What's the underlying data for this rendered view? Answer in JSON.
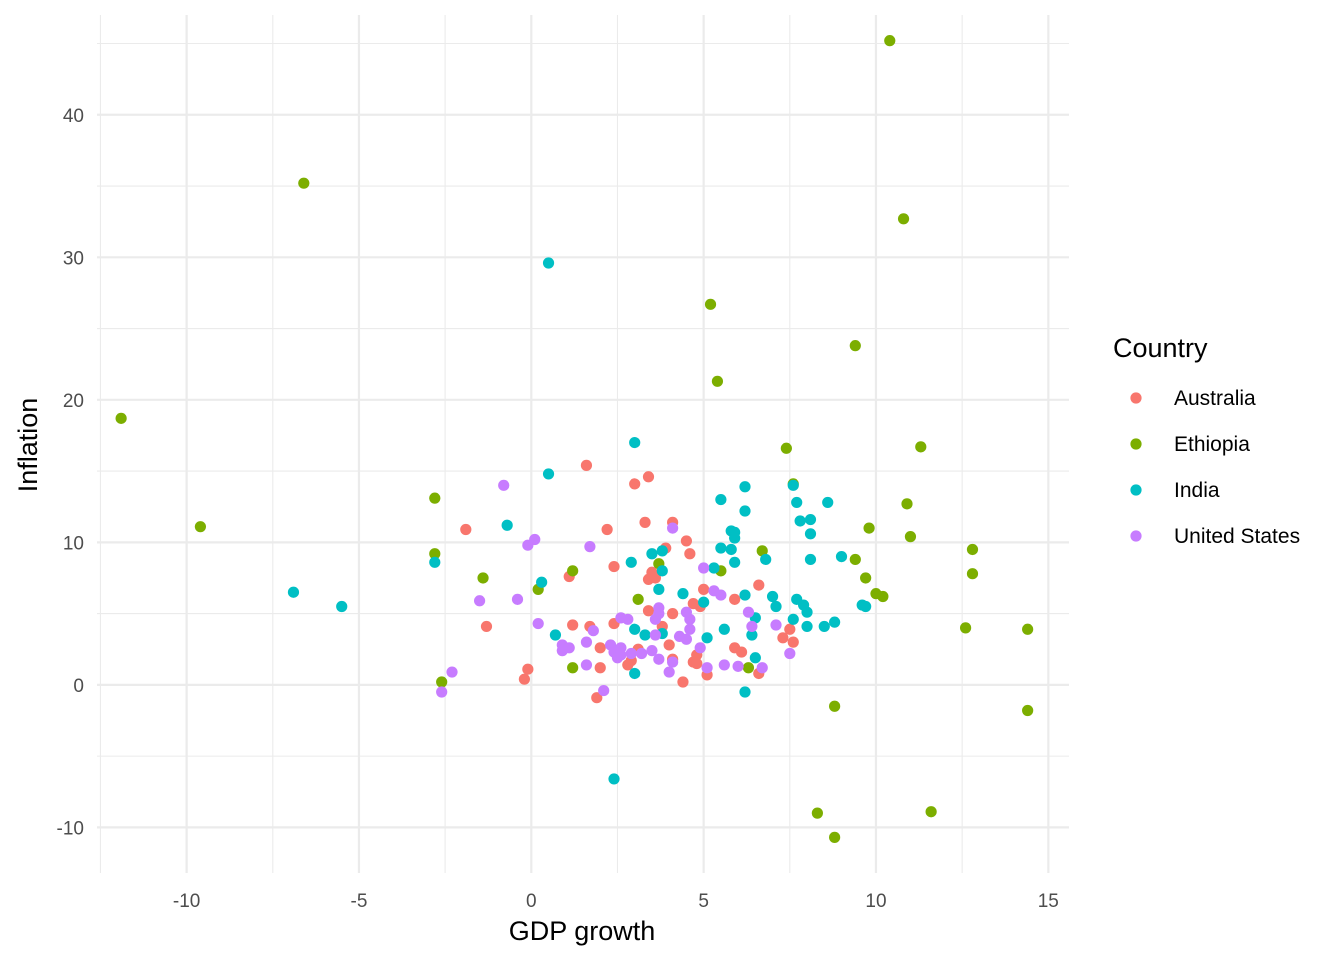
{
  "chart_data": {
    "type": "scatter",
    "xlabel": "GDP growth",
    "ylabel": "Inflation",
    "xlim": [
      -12.6,
      15.6
    ],
    "ylim": [
      -13.2,
      47.0
    ],
    "x_ticks": [
      -10,
      -5,
      0,
      5,
      10,
      15
    ],
    "y_ticks": [
      -10,
      0,
      10,
      20,
      30,
      40
    ],
    "x_tick_labels": [
      "-10",
      "-5",
      "0",
      "5",
      "10",
      "15"
    ],
    "y_tick_labels": [
      "-10",
      "0",
      "10",
      "20",
      "30",
      "40"
    ],
    "grid": true,
    "legend": {
      "title": "Country",
      "position": "right"
    },
    "series": [
      {
        "name": "Australia",
        "color": "#F8766D",
        "points": [
          [
            1.6,
            15.4
          ],
          [
            3.4,
            14.6
          ],
          [
            3.0,
            14.1
          ],
          [
            3.3,
            11.4
          ],
          [
            4.1,
            11.4
          ],
          [
            2.2,
            10.9
          ],
          [
            -1.9,
            10.9
          ],
          [
            4.5,
            10.1
          ],
          [
            3.9,
            9.6
          ],
          [
            4.6,
            9.2
          ],
          [
            3.5,
            7.9
          ],
          [
            3.4,
            7.4
          ],
          [
            3.6,
            7.5
          ],
          [
            2.4,
            8.3
          ],
          [
            1.1,
            7.6
          ],
          [
            6.6,
            7.0
          ],
          [
            5.0,
            6.7
          ],
          [
            5.9,
            6.0
          ],
          [
            3.4,
            5.2
          ],
          [
            4.1,
            5.0
          ],
          [
            4.9,
            5.5
          ],
          [
            4.7,
            5.7
          ],
          [
            -1.3,
            4.1
          ],
          [
            1.2,
            4.2
          ],
          [
            1.7,
            4.1
          ],
          [
            2.4,
            4.3
          ],
          [
            3.8,
            4.1
          ],
          [
            7.5,
            3.9
          ],
          [
            7.3,
            3.3
          ],
          [
            7.6,
            3.0
          ],
          [
            4.0,
            2.8
          ],
          [
            5.9,
            2.6
          ],
          [
            6.1,
            2.3
          ],
          [
            3.1,
            2.5
          ],
          [
            2.0,
            2.6
          ],
          [
            4.8,
            2.1
          ],
          [
            4.1,
            1.8
          ],
          [
            2.9,
            1.7
          ],
          [
            4.7,
            1.6
          ],
          [
            4.8,
            1.5
          ],
          [
            2.8,
            1.4
          ],
          [
            2.0,
            1.2
          ],
          [
            -0.1,
            1.1
          ],
          [
            -0.2,
            0.4
          ],
          [
            5.1,
            0.7
          ],
          [
            6.6,
            0.8
          ],
          [
            4.4,
            0.2
          ],
          [
            1.9,
            -0.9
          ]
        ]
      },
      {
        "name": "Ethiopia",
        "color": "#7CAE00",
        "points": [
          [
            10.4,
            45.2
          ],
          [
            -6.6,
            35.2
          ],
          [
            10.8,
            32.7
          ],
          [
            5.2,
            26.7
          ],
          [
            9.4,
            23.8
          ],
          [
            5.4,
            21.3
          ],
          [
            -11.9,
            18.7
          ],
          [
            11.3,
            16.7
          ],
          [
            7.4,
            16.6
          ],
          [
            7.6,
            14.1
          ],
          [
            -2.8,
            13.1
          ],
          [
            10.9,
            12.7
          ],
          [
            -9.6,
            11.1
          ],
          [
            9.8,
            11.0
          ],
          [
            11.0,
            10.4
          ],
          [
            12.8,
            9.5
          ],
          [
            6.7,
            9.4
          ],
          [
            -2.8,
            9.2
          ],
          [
            9.4,
            8.8
          ],
          [
            3.7,
            8.5
          ],
          [
            1.2,
            8.0
          ],
          [
            5.5,
            8.0
          ],
          [
            12.8,
            7.8
          ],
          [
            -1.4,
            7.5
          ],
          [
            9.7,
            7.5
          ],
          [
            0.2,
            6.7
          ],
          [
            10.0,
            6.4
          ],
          [
            10.2,
            6.2
          ],
          [
            3.1,
            6.0
          ],
          [
            12.6,
            4.0
          ],
          [
            14.4,
            3.9
          ],
          [
            1.2,
            1.2
          ],
          [
            6.3,
            1.2
          ],
          [
            -2.6,
            0.2
          ],
          [
            8.8,
            -1.5
          ],
          [
            14.4,
            -1.8
          ],
          [
            8.3,
            -9.0
          ],
          [
            11.6,
            -8.9
          ],
          [
            8.8,
            -10.7
          ]
        ]
      },
      {
        "name": "India",
        "color": "#00BFC4",
        "points": [
          [
            0.5,
            29.6
          ],
          [
            3.0,
            17.0
          ],
          [
            0.5,
            14.8
          ],
          [
            7.6,
            14.0
          ],
          [
            6.2,
            13.9
          ],
          [
            5.5,
            13.0
          ],
          [
            7.7,
            12.8
          ],
          [
            8.6,
            12.8
          ],
          [
            6.2,
            12.2
          ],
          [
            8.1,
            11.6
          ],
          [
            7.8,
            11.5
          ],
          [
            -0.7,
            11.2
          ],
          [
            5.8,
            10.8
          ],
          [
            5.9,
            10.7
          ],
          [
            5.9,
            10.3
          ],
          [
            8.1,
            10.6
          ],
          [
            3.8,
            9.4
          ],
          [
            3.5,
            9.2
          ],
          [
            5.5,
            9.6
          ],
          [
            5.8,
            9.5
          ],
          [
            9.0,
            9.0
          ],
          [
            6.8,
            8.8
          ],
          [
            8.1,
            8.8
          ],
          [
            5.9,
            8.6
          ],
          [
            2.9,
            8.6
          ],
          [
            -2.8,
            8.6
          ],
          [
            5.3,
            8.2
          ],
          [
            3.8,
            8.0
          ],
          [
            0.3,
            7.2
          ],
          [
            3.7,
            6.7
          ],
          [
            -6.9,
            6.5
          ],
          [
            4.4,
            6.4
          ],
          [
            6.2,
            6.3
          ],
          [
            7.0,
            6.2
          ],
          [
            7.7,
            6.0
          ],
          [
            7.9,
            5.6
          ],
          [
            9.6,
            5.6
          ],
          [
            5.0,
            5.8
          ],
          [
            7.1,
            5.5
          ],
          [
            9.7,
            5.5
          ],
          [
            -5.5,
            5.5
          ],
          [
            8.0,
            5.1
          ],
          [
            6.5,
            4.7
          ],
          [
            7.6,
            4.6
          ],
          [
            8.8,
            4.4
          ],
          [
            8.0,
            4.1
          ],
          [
            8.5,
            4.1
          ],
          [
            3.0,
            3.9
          ],
          [
            5.6,
            3.9
          ],
          [
            6.4,
            3.5
          ],
          [
            0.7,
            3.5
          ],
          [
            3.8,
            3.6
          ],
          [
            3.3,
            3.5
          ],
          [
            5.1,
            3.3
          ],
          [
            6.5,
            1.9
          ],
          [
            6.2,
            -0.5
          ],
          [
            3.0,
            0.8
          ],
          [
            2.4,
            -6.6
          ]
        ]
      },
      {
        "name": "United States",
        "color": "#C77CFF",
        "points": [
          [
            -0.8,
            14.0
          ],
          [
            4.1,
            11.0
          ],
          [
            0.1,
            10.2
          ],
          [
            -0.1,
            9.8
          ],
          [
            1.7,
            9.7
          ],
          [
            5.0,
            8.2
          ],
          [
            5.3,
            6.6
          ],
          [
            5.5,
            6.3
          ],
          [
            -1.5,
            5.9
          ],
          [
            -0.4,
            6.0
          ],
          [
            3.7,
            5.4
          ],
          [
            3.7,
            5.0
          ],
          [
            4.5,
            5.1
          ],
          [
            6.3,
            5.1
          ],
          [
            3.6,
            4.6
          ],
          [
            4.6,
            4.6
          ],
          [
            2.6,
            4.7
          ],
          [
            2.8,
            4.6
          ],
          [
            0.2,
            4.3
          ],
          [
            1.8,
            3.8
          ],
          [
            4.6,
            3.9
          ],
          [
            6.4,
            4.1
          ],
          [
            7.1,
            4.2
          ],
          [
            3.6,
            3.5
          ],
          [
            4.3,
            3.4
          ],
          [
            4.5,
            3.2
          ],
          [
            1.6,
            3.0
          ],
          [
            2.3,
            2.8
          ],
          [
            0.9,
            2.8
          ],
          [
            0.9,
            2.4
          ],
          [
            1.1,
            2.6
          ],
          [
            2.6,
            2.6
          ],
          [
            2.4,
            2.3
          ],
          [
            3.5,
            2.4
          ],
          [
            3.2,
            2.2
          ],
          [
            2.6,
            2.1
          ],
          [
            2.9,
            2.2
          ],
          [
            2.5,
            1.9
          ],
          [
            3.7,
            1.8
          ],
          [
            4.9,
            2.6
          ],
          [
            4.1,
            1.6
          ],
          [
            1.6,
            1.4
          ],
          [
            5.6,
            1.4
          ],
          [
            6.0,
            1.3
          ],
          [
            5.1,
            1.2
          ],
          [
            6.7,
            1.2
          ],
          [
            4.0,
            0.9
          ],
          [
            -2.3,
            0.9
          ],
          [
            7.5,
            2.2
          ],
          [
            -2.6,
            -0.5
          ],
          [
            2.1,
            -0.4
          ]
        ]
      }
    ]
  }
}
